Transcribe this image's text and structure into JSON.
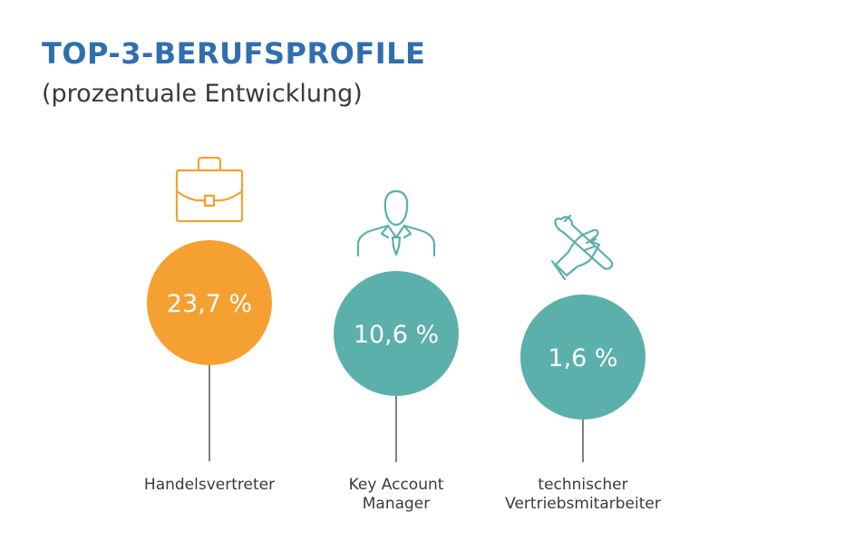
{
  "header": {
    "title": "TOP-3-BERUFSPROFILE",
    "subtitle": "(prozentuale Entwicklung)"
  },
  "colors": {
    "highlight": "#f4a131",
    "accent": "#5bb0ab",
    "title": "#2f6fae",
    "text": "#3a3a3a",
    "line": "#555555"
  },
  "chart_data": {
    "type": "bar",
    "title": "TOP-3-BERUFSPROFILE",
    "subtitle": "(prozentuale Entwicklung)",
    "unit": "%",
    "categories": [
      "Handelsvertreter",
      "Key Account Manager",
      "technischer Vertriebsmitarbeiter"
    ],
    "category_lines": [
      [
        "Handelsvertreter"
      ],
      [
        "Key Account",
        "Manager"
      ],
      [
        "technischer",
        "Vertriebsmitarbeiter"
      ]
    ],
    "values": [
      23.7,
      10.6,
      1.6
    ],
    "value_labels": [
      "23,7 %",
      "10,6 %",
      "1,6 %"
    ],
    "icons": [
      "briefcase-icon",
      "businessman-icon",
      "wrench-hand-icon"
    ],
    "item_colors": [
      "#f4a131",
      "#5bb0ab",
      "#5bb0ab"
    ],
    "grid": false,
    "legend": "none"
  }
}
